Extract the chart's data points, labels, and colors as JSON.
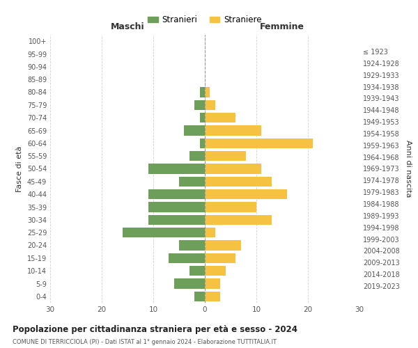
{
  "age_groups": [
    "0-4",
    "5-9",
    "10-14",
    "15-19",
    "20-24",
    "25-29",
    "30-34",
    "35-39",
    "40-44",
    "45-49",
    "50-54",
    "55-59",
    "60-64",
    "65-69",
    "70-74",
    "75-79",
    "80-84",
    "85-89",
    "90-94",
    "95-99",
    "100+"
  ],
  "birth_years": [
    "2019-2023",
    "2014-2018",
    "2009-2013",
    "2004-2008",
    "1999-2003",
    "1994-1998",
    "1989-1993",
    "1984-1988",
    "1979-1983",
    "1974-1978",
    "1969-1973",
    "1964-1968",
    "1959-1963",
    "1954-1958",
    "1949-1953",
    "1944-1948",
    "1939-1943",
    "1934-1938",
    "1929-1933",
    "1924-1928",
    "≤ 1923"
  ],
  "maschi": [
    2,
    6,
    3,
    7,
    5,
    16,
    11,
    11,
    11,
    5,
    11,
    3,
    1,
    4,
    1,
    2,
    1,
    0,
    0,
    0,
    0
  ],
  "femmine": [
    3,
    3,
    4,
    6,
    7,
    2,
    13,
    10,
    16,
    13,
    11,
    8,
    21,
    11,
    6,
    2,
    1,
    0,
    0,
    0,
    0
  ],
  "color_maschi": "#6d9e5a",
  "color_femmine": "#f5c242",
  "title": "Popolazione per cittadinanza straniera per età e sesso - 2024",
  "subtitle": "COMUNE DI TERRICCIOLA (PI) - Dati ISTAT al 1° gennaio 2024 - Elaborazione TUTTITALIA.IT",
  "xlabel_left": "Maschi",
  "xlabel_right": "Femmine",
  "ylabel_left": "Fasce di età",
  "ylabel_right": "Anni di nascita",
  "legend_maschi": "Stranieri",
  "legend_femmine": "Straniere",
  "xlim": 30,
  "background_color": "#ffffff",
  "grid_color": "#cccccc"
}
